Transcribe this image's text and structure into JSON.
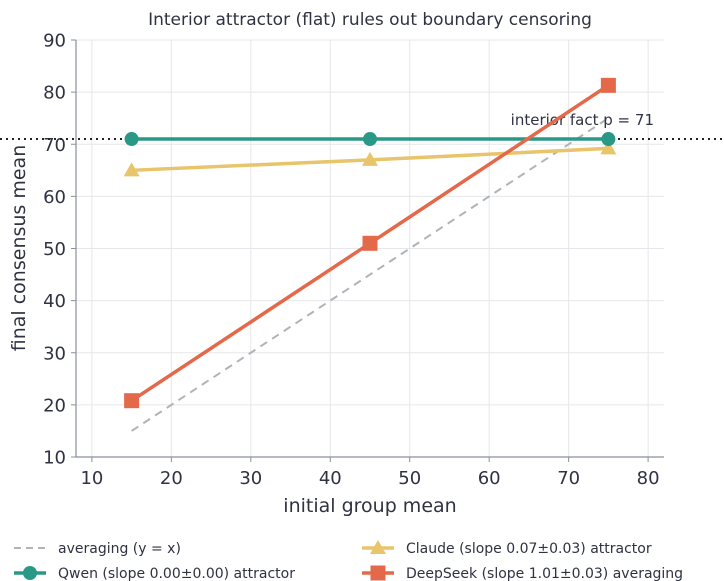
{
  "chart_data": {
    "type": "line",
    "title": "Interior attractor (flat) rules out boundary censoring",
    "xlabel": "initial group mean",
    "ylabel": "final consensus mean",
    "xlim": [
      8,
      82
    ],
    "ylim": [
      10,
      90
    ],
    "xticks": [
      10,
      20,
      30,
      40,
      50,
      60,
      70,
      80
    ],
    "yticks": [
      10,
      20,
      30,
      40,
      50,
      60,
      70,
      80,
      90
    ],
    "grid": true,
    "legend_position": "bottom",
    "reference_line": {
      "name": "averaging  (y = x)",
      "x": [
        15,
        75
      ],
      "y": [
        15,
        75
      ],
      "color": "#b0b3b8"
    },
    "interior_fact": {
      "value": 71,
      "label": "interior fact  p = 71",
      "color": "#222222"
    },
    "series": [
      {
        "name": "Qwen  (slope 0.00±0.00) attractor",
        "color": "#2a9886",
        "marker": "circle",
        "x": [
          15,
          45,
          75
        ],
        "y": [
          71,
          71,
          71
        ]
      },
      {
        "name": "Claude  (slope 0.07±0.03) attractor",
        "color": "#e8c46a",
        "marker": "triangle",
        "x": [
          15,
          45,
          75
        ],
        "y": [
          65,
          67,
          69.2
        ]
      },
      {
        "name": "DeepSeek  (slope 1.01±0.03) averaging",
        "color": "#e3694a",
        "marker": "square",
        "x": [
          15,
          45,
          75
        ],
        "y": [
          20.8,
          51,
          81.3
        ]
      }
    ]
  }
}
